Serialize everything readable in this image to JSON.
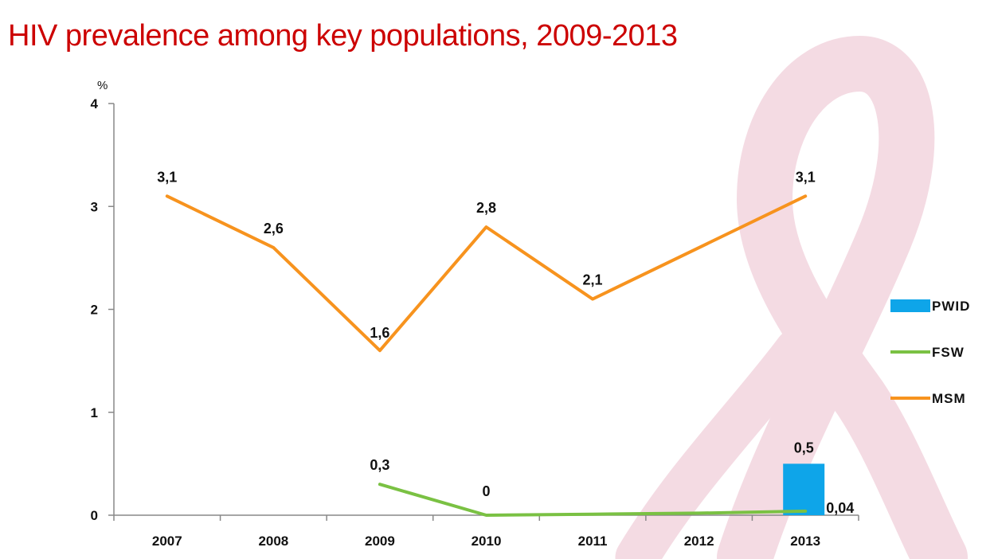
{
  "slide": {
    "title": "HIV prevalence among key populations, 2009-2013"
  },
  "colors": {
    "title": "#cc0000",
    "PWID": "#0ea5e9",
    "FSW": "#7ac143",
    "MSM": "#f7931e",
    "ribbon": "#f2d6df"
  },
  "chart_data": {
    "type": "line",
    "title": "HIV prevalence among key populations, 2009-2013",
    "ylabel": "%",
    "xlabel": "",
    "ylim": [
      0,
      4
    ],
    "yticks": [
      "0",
      "1",
      "2",
      "3",
      "4"
    ],
    "categories": [
      "2007",
      "2008",
      "2009",
      "2010",
      "2011",
      "2012",
      "2013"
    ],
    "legend_position": "right",
    "series": [
      {
        "name": "PWID",
        "kind": "bar",
        "color": "#0ea5e9",
        "values": [
          null,
          null,
          null,
          null,
          null,
          null,
          0.5
        ],
        "labels": [
          null,
          null,
          null,
          null,
          null,
          null,
          "0,5"
        ]
      },
      {
        "name": "FSW",
        "kind": "line",
        "color": "#7ac143",
        "values": [
          null,
          null,
          0.3,
          0,
          0.01,
          0.02,
          0.04
        ],
        "labels": [
          null,
          null,
          "0,3",
          "0",
          null,
          null,
          "0,04"
        ]
      },
      {
        "name": "MSM",
        "kind": "line",
        "color": "#f7931e",
        "values": [
          3.1,
          2.6,
          1.6,
          2.8,
          2.1,
          null,
          3.1
        ],
        "labels": [
          "3,1",
          "2,6",
          "1,6",
          "2,8",
          "2,1",
          null,
          "3,1"
        ]
      }
    ]
  }
}
